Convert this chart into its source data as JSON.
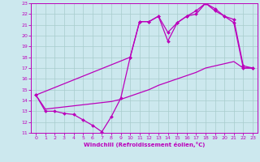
{
  "xlabel": "Windchill (Refroidissement éolien,°C)",
  "bg_color": "#cce8ee",
  "grid_color": "#a8cccc",
  "line_color": "#bb00bb",
  "xlim": [
    -0.5,
    23.5
  ],
  "ylim": [
    11,
    23
  ],
  "xticks": [
    0,
    1,
    2,
    3,
    4,
    5,
    6,
    7,
    8,
    9,
    10,
    11,
    12,
    13,
    14,
    15,
    16,
    17,
    18,
    19,
    20,
    21,
    22,
    23
  ],
  "yticks": [
    11,
    12,
    13,
    14,
    15,
    16,
    17,
    18,
    19,
    20,
    21,
    22,
    23
  ],
  "curve_x": [
    0,
    1,
    2,
    3,
    4,
    5,
    6,
    7,
    8,
    9,
    10,
    11,
    12,
    13,
    14,
    15,
    16,
    17,
    18,
    19,
    20,
    21,
    22,
    23
  ],
  "curve_y": [
    14.5,
    13.0,
    13.0,
    12.8,
    12.7,
    12.2,
    11.7,
    11.1,
    12.5,
    14.2,
    18.0,
    21.3,
    21.3,
    21.8,
    19.5,
    21.2,
    21.8,
    22.3,
    23.0,
    22.3,
    21.8,
    21.2,
    17.0,
    17.0
  ],
  "diag_x": [
    0,
    1,
    2,
    3,
    4,
    5,
    6,
    7,
    8,
    9,
    10,
    11,
    12,
    13,
    14,
    15,
    16,
    17,
    18,
    19,
    20,
    21,
    22,
    23
  ],
  "diag_y": [
    14.5,
    13.2,
    13.3,
    13.4,
    13.5,
    13.6,
    13.7,
    13.8,
    13.9,
    14.1,
    14.4,
    14.7,
    15.0,
    15.4,
    15.7,
    16.0,
    16.3,
    16.6,
    17.0,
    17.2,
    17.4,
    17.6,
    17.0,
    17.0
  ],
  "upper_x": [
    0,
    10,
    11,
    12,
    13,
    14,
    15,
    16,
    17,
    18,
    19,
    20,
    21,
    22,
    23
  ],
  "upper_y": [
    14.5,
    18.0,
    21.3,
    21.3,
    21.8,
    20.3,
    21.2,
    21.8,
    22.0,
    23.0,
    22.5,
    21.8,
    21.5,
    17.2,
    17.0
  ]
}
